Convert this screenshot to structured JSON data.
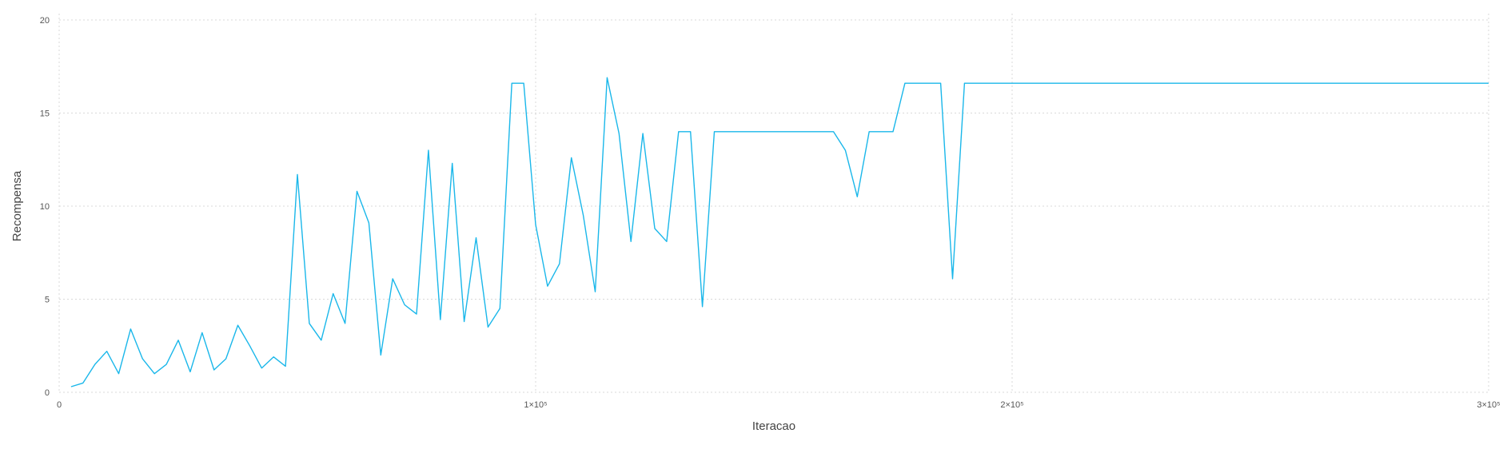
{
  "chart_data": {
    "type": "line",
    "title": "",
    "xlabel": "Iteracao",
    "ylabel": "Recompensa",
    "xlim": [
      0,
      300000
    ],
    "ylim": [
      0,
      20
    ],
    "grid": true,
    "legend": "none",
    "x_ticks": [
      {
        "value": 0,
        "label": "0"
      },
      {
        "value": 100000,
        "label": "1×10⁵"
      },
      {
        "value": 200000,
        "label": "2×10⁵"
      },
      {
        "value": 300000,
        "label": "3×10⁵"
      }
    ],
    "y_ticks": [
      {
        "value": 0,
        "label": "0"
      },
      {
        "value": 5,
        "label": "5"
      },
      {
        "value": 10,
        "label": "10"
      },
      {
        "value": 15,
        "label": "15"
      },
      {
        "value": 20,
        "label": "20"
      }
    ],
    "series": [
      {
        "color": "#1ab7ea",
        "points": [
          [
            2500,
            0.3
          ],
          [
            5000,
            0.5
          ],
          [
            7500,
            1.5
          ],
          [
            10000,
            2.2
          ],
          [
            12500,
            1.0
          ],
          [
            15000,
            3.4
          ],
          [
            17500,
            1.8
          ],
          [
            20000,
            1.0
          ],
          [
            22500,
            1.5
          ],
          [
            25000,
            2.8
          ],
          [
            27500,
            1.1
          ],
          [
            30000,
            3.2
          ],
          [
            32500,
            1.2
          ],
          [
            35000,
            1.8
          ],
          [
            37500,
            3.6
          ],
          [
            40000,
            2.5
          ],
          [
            42500,
            1.3
          ],
          [
            45000,
            1.9
          ],
          [
            47500,
            1.4
          ],
          [
            50000,
            11.7
          ],
          [
            52500,
            3.7
          ],
          [
            55000,
            2.8
          ],
          [
            57500,
            5.3
          ],
          [
            60000,
            3.7
          ],
          [
            62500,
            10.8
          ],
          [
            65000,
            9.1
          ],
          [
            67500,
            2.0
          ],
          [
            70000,
            6.1
          ],
          [
            72500,
            4.7
          ],
          [
            75000,
            4.2
          ],
          [
            77500,
            13.0
          ],
          [
            80000,
            3.9
          ],
          [
            82500,
            12.3
          ],
          [
            85000,
            3.8
          ],
          [
            87500,
            8.3
          ],
          [
            90000,
            3.5
          ],
          [
            92500,
            4.5
          ],
          [
            95000,
            16.6
          ],
          [
            97500,
            16.6
          ],
          [
            100000,
            9.0
          ],
          [
            102500,
            5.7
          ],
          [
            105000,
            6.9
          ],
          [
            107500,
            12.6
          ],
          [
            110000,
            9.5
          ],
          [
            112500,
            5.4
          ],
          [
            115000,
            16.9
          ],
          [
            117500,
            13.9
          ],
          [
            120000,
            8.1
          ],
          [
            122500,
            13.9
          ],
          [
            125000,
            8.8
          ],
          [
            127500,
            8.1
          ],
          [
            130000,
            14.0
          ],
          [
            132500,
            14.0
          ],
          [
            135000,
            4.6
          ],
          [
            137500,
            14.0
          ],
          [
            140000,
            14.0
          ],
          [
            142500,
            14.0
          ],
          [
            145000,
            14.0
          ],
          [
            147500,
            14.0
          ],
          [
            150000,
            14.0
          ],
          [
            152500,
            14.0
          ],
          [
            155000,
            14.0
          ],
          [
            157500,
            14.0
          ],
          [
            160000,
            14.0
          ],
          [
            162500,
            14.0
          ],
          [
            165000,
            13.0
          ],
          [
            167500,
            10.5
          ],
          [
            170000,
            14.0
          ],
          [
            172500,
            14.0
          ],
          [
            175000,
            14.0
          ],
          [
            177500,
            16.6
          ],
          [
            180000,
            16.6
          ],
          [
            182500,
            16.6
          ],
          [
            185000,
            16.6
          ],
          [
            187500,
            6.1
          ],
          [
            190000,
            16.6
          ],
          [
            192500,
            16.6
          ],
          [
            195000,
            16.6
          ],
          [
            200000,
            16.6
          ],
          [
            210000,
            16.6
          ],
          [
            220000,
            16.6
          ],
          [
            230000,
            16.6
          ],
          [
            240000,
            16.6
          ],
          [
            250000,
            16.6
          ],
          [
            260000,
            16.6
          ],
          [
            270000,
            16.6
          ],
          [
            280000,
            16.6
          ],
          [
            290000,
            16.6
          ],
          [
            300000,
            16.6
          ]
        ]
      }
    ]
  }
}
